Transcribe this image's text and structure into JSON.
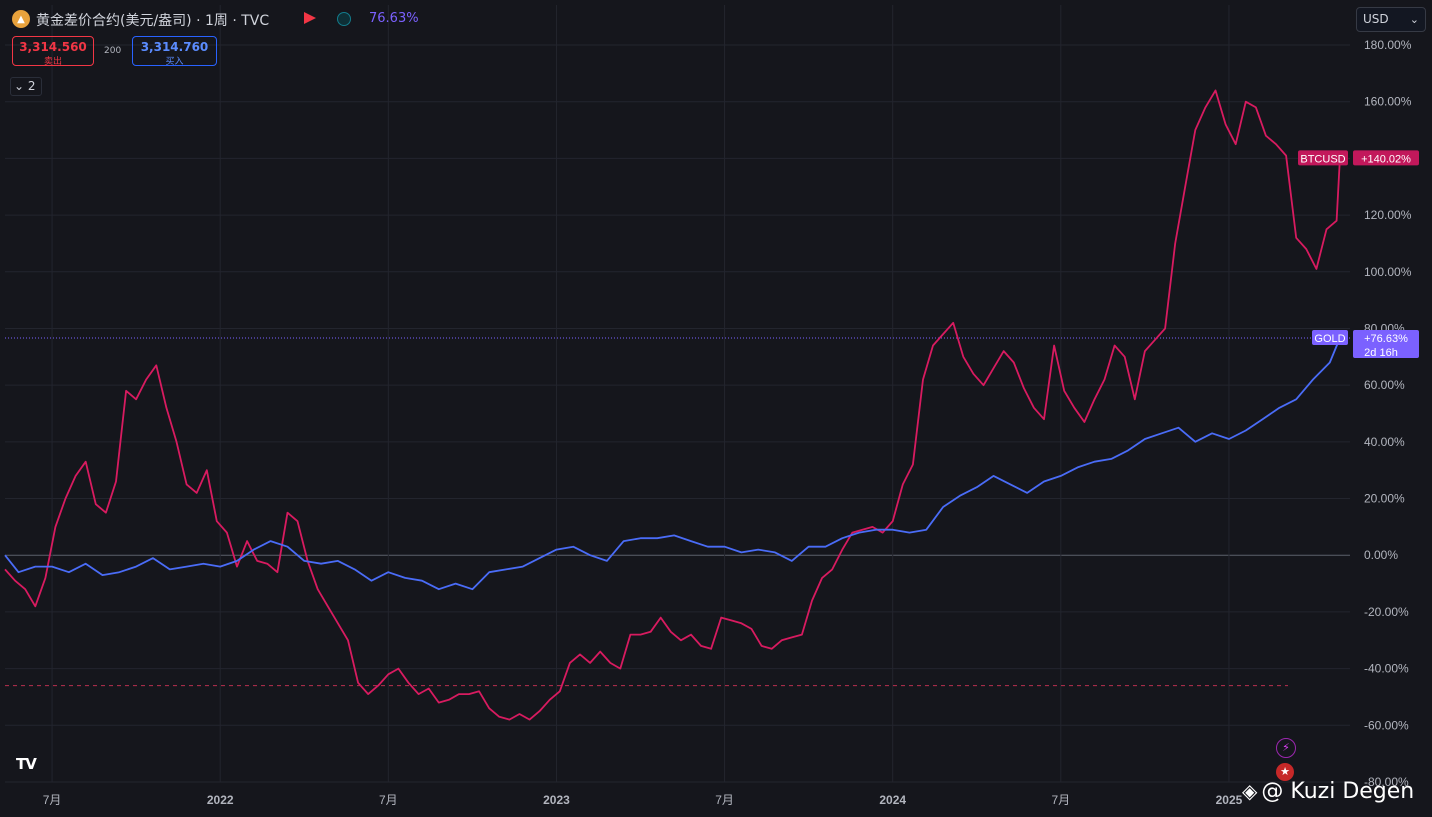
{
  "header": {
    "title": "黄金差价合约(美元/盎司) · 1周 · TVC",
    "change": "76.63%",
    "sell_price": "3,314.560",
    "sell_label": "卖出",
    "spread": "200",
    "buy_price": "3,314.760",
    "buy_label": "买入",
    "indicators_count": "2",
    "currency": "USD"
  },
  "watermark": "Kuzi Degen",
  "colors": {
    "gold": "#4a6cf7",
    "btc": "#d81b60",
    "background": "#15161c",
    "grid": "#23252e",
    "gold_tag": "#7b61ff"
  },
  "chart_data": {
    "type": "line",
    "y_unit": "%",
    "ylim": [
      -80,
      180
    ],
    "yticks": [
      "180.00%",
      "160.00%",
      "140.00%",
      "120.00%",
      "100.00%",
      "80.00%",
      "60.00%",
      "40.00%",
      "20.00%",
      "0.00%",
      "-20.00%",
      "-40.00%",
      "-60.00%",
      "-80.00%"
    ],
    "xlim": [
      2021.36,
      2025.36
    ],
    "xticks": [
      {
        "label": "7月",
        "x": 2021.5
      },
      {
        "label": "2022",
        "x": 2022.0
      },
      {
        "label": "7月",
        "x": 2022.5
      },
      {
        "label": "2023",
        "x": 2023.0
      },
      {
        "label": "7月",
        "x": 2023.5
      },
      {
        "label": "2024",
        "x": 2024.0
      },
      {
        "label": "7月",
        "x": 2024.5
      },
      {
        "label": "2025",
        "x": 2025.0
      }
    ],
    "grid": true,
    "legend": "none",
    "series": [
      {
        "name": "GOLD",
        "last_label": "+76.63%",
        "countdown": "2d 16h",
        "points": [
          [
            2021.36,
            0
          ],
          [
            2021.4,
            -6
          ],
          [
            2021.45,
            -4
          ],
          [
            2021.5,
            -4
          ],
          [
            2021.55,
            -6
          ],
          [
            2021.6,
            -3
          ],
          [
            2021.65,
            -7
          ],
          [
            2021.7,
            -6
          ],
          [
            2021.75,
            -4
          ],
          [
            2021.8,
            -1
          ],
          [
            2021.85,
            -5
          ],
          [
            2021.9,
            -4
          ],
          [
            2021.95,
            -3
          ],
          [
            2022.0,
            -4
          ],
          [
            2022.05,
            -2
          ],
          [
            2022.1,
            2
          ],
          [
            2022.15,
            5
          ],
          [
            2022.2,
            3
          ],
          [
            2022.25,
            -2
          ],
          [
            2022.3,
            -3
          ],
          [
            2022.35,
            -2
          ],
          [
            2022.4,
            -5
          ],
          [
            2022.45,
            -9
          ],
          [
            2022.5,
            -6
          ],
          [
            2022.55,
            -8
          ],
          [
            2022.6,
            -9
          ],
          [
            2022.65,
            -12
          ],
          [
            2022.7,
            -10
          ],
          [
            2022.75,
            -12
          ],
          [
            2022.8,
            -6
          ],
          [
            2022.85,
            -5
          ],
          [
            2022.9,
            -4
          ],
          [
            2022.95,
            -1
          ],
          [
            2023.0,
            2
          ],
          [
            2023.05,
            3
          ],
          [
            2023.1,
            0
          ],
          [
            2023.15,
            -2
          ],
          [
            2023.2,
            5
          ],
          [
            2023.25,
            6
          ],
          [
            2023.3,
            6
          ],
          [
            2023.35,
            7
          ],
          [
            2023.4,
            5
          ],
          [
            2023.45,
            3
          ],
          [
            2023.5,
            3
          ],
          [
            2023.55,
            1
          ],
          [
            2023.6,
            2
          ],
          [
            2023.65,
            1
          ],
          [
            2023.7,
            -2
          ],
          [
            2023.75,
            3
          ],
          [
            2023.8,
            3
          ],
          [
            2023.85,
            6
          ],
          [
            2023.9,
            8
          ],
          [
            2023.95,
            9
          ],
          [
            2024.0,
            9
          ],
          [
            2024.05,
            8
          ],
          [
            2024.1,
            9
          ],
          [
            2024.15,
            17
          ],
          [
            2024.2,
            21
          ],
          [
            2024.25,
            24
          ],
          [
            2024.3,
            28
          ],
          [
            2024.35,
            25
          ],
          [
            2024.4,
            22
          ],
          [
            2024.45,
            26
          ],
          [
            2024.5,
            28
          ],
          [
            2024.55,
            31
          ],
          [
            2024.6,
            33
          ],
          [
            2024.65,
            34
          ],
          [
            2024.7,
            37
          ],
          [
            2024.75,
            41
          ],
          [
            2024.8,
            43
          ],
          [
            2024.85,
            45
          ],
          [
            2024.9,
            40
          ],
          [
            2024.95,
            43
          ],
          [
            2025.0,
            41
          ],
          [
            2025.05,
            44
          ],
          [
            2025.1,
            48
          ],
          [
            2025.15,
            52
          ],
          [
            2025.2,
            55
          ],
          [
            2025.25,
            62
          ],
          [
            2025.3,
            68
          ],
          [
            2025.33,
            76.63
          ]
        ]
      },
      {
        "name": "BTCUSD",
        "last_label": "+140.02%",
        "points": [
          [
            2021.36,
            -5
          ],
          [
            2021.39,
            -9
          ],
          [
            2021.42,
            -12
          ],
          [
            2021.45,
            -18
          ],
          [
            2021.48,
            -8
          ],
          [
            2021.51,
            10
          ],
          [
            2021.54,
            20
          ],
          [
            2021.57,
            28
          ],
          [
            2021.6,
            33
          ],
          [
            2021.63,
            18
          ],
          [
            2021.66,
            15
          ],
          [
            2021.69,
            26
          ],
          [
            2021.72,
            58
          ],
          [
            2021.75,
            55
          ],
          [
            2021.78,
            62
          ],
          [
            2021.81,
            67
          ],
          [
            2021.84,
            52
          ],
          [
            2021.87,
            40
          ],
          [
            2021.9,
            25
          ],
          [
            2021.93,
            22
          ],
          [
            2021.96,
            30
          ],
          [
            2021.99,
            12
          ],
          [
            2022.02,
            8
          ],
          [
            2022.05,
            -4
          ],
          [
            2022.08,
            5
          ],
          [
            2022.11,
            -2
          ],
          [
            2022.14,
            -3
          ],
          [
            2022.17,
            -6
          ],
          [
            2022.2,
            15
          ],
          [
            2022.23,
            12
          ],
          [
            2022.26,
            -2
          ],
          [
            2022.29,
            -12
          ],
          [
            2022.32,
            -18
          ],
          [
            2022.35,
            -24
          ],
          [
            2022.38,
            -30
          ],
          [
            2022.41,
            -45
          ],
          [
            2022.44,
            -49
          ],
          [
            2022.47,
            -46
          ],
          [
            2022.5,
            -42
          ],
          [
            2022.53,
            -40
          ],
          [
            2022.56,
            -45
          ],
          [
            2022.59,
            -49
          ],
          [
            2022.62,
            -47
          ],
          [
            2022.65,
            -52
          ],
          [
            2022.68,
            -51
          ],
          [
            2022.71,
            -49
          ],
          [
            2022.74,
            -49
          ],
          [
            2022.77,
            -48
          ],
          [
            2022.8,
            -54
          ],
          [
            2022.83,
            -57
          ],
          [
            2022.86,
            -58
          ],
          [
            2022.89,
            -56
          ],
          [
            2022.92,
            -58
          ],
          [
            2022.95,
            -55
          ],
          [
            2022.98,
            -51
          ],
          [
            2023.01,
            -48
          ],
          [
            2023.04,
            -38
          ],
          [
            2023.07,
            -35
          ],
          [
            2023.1,
            -38
          ],
          [
            2023.13,
            -34
          ],
          [
            2023.16,
            -38
          ],
          [
            2023.19,
            -40
          ],
          [
            2023.22,
            -28
          ],
          [
            2023.25,
            -28
          ],
          [
            2023.28,
            -27
          ],
          [
            2023.31,
            -22
          ],
          [
            2023.34,
            -27
          ],
          [
            2023.37,
            -30
          ],
          [
            2023.4,
            -28
          ],
          [
            2023.43,
            -32
          ],
          [
            2023.46,
            -33
          ],
          [
            2023.49,
            -22
          ],
          [
            2023.52,
            -23
          ],
          [
            2023.55,
            -24
          ],
          [
            2023.58,
            -26
          ],
          [
            2023.61,
            -32
          ],
          [
            2023.64,
            -33
          ],
          [
            2023.67,
            -30
          ],
          [
            2023.7,
            -29
          ],
          [
            2023.73,
            -28
          ],
          [
            2023.76,
            -16
          ],
          [
            2023.79,
            -8
          ],
          [
            2023.82,
            -5
          ],
          [
            2023.85,
            2
          ],
          [
            2023.88,
            8
          ],
          [
            2023.91,
            9
          ],
          [
            2023.94,
            10
          ],
          [
            2023.97,
            8
          ],
          [
            2024.0,
            12
          ],
          [
            2024.03,
            25
          ],
          [
            2024.06,
            32
          ],
          [
            2024.09,
            62
          ],
          [
            2024.12,
            74
          ],
          [
            2024.15,
            78
          ],
          [
            2024.18,
            82
          ],
          [
            2024.21,
            70
          ],
          [
            2024.24,
            64
          ],
          [
            2024.27,
            60
          ],
          [
            2024.3,
            66
          ],
          [
            2024.33,
            72
          ],
          [
            2024.36,
            68
          ],
          [
            2024.39,
            59
          ],
          [
            2024.42,
            52
          ],
          [
            2024.45,
            48
          ],
          [
            2024.48,
            74
          ],
          [
            2024.51,
            58
          ],
          [
            2024.54,
            52
          ],
          [
            2024.57,
            47
          ],
          [
            2024.6,
            55
          ],
          [
            2024.63,
            62
          ],
          [
            2024.66,
            74
          ],
          [
            2024.69,
            70
          ],
          [
            2024.72,
            55
          ],
          [
            2024.75,
            72
          ],
          [
            2024.78,
            76
          ],
          [
            2024.81,
            80
          ],
          [
            2024.84,
            110
          ],
          [
            2024.87,
            130
          ],
          [
            2024.9,
            150
          ],
          [
            2024.93,
            158
          ],
          [
            2024.96,
            164
          ],
          [
            2024.99,
            152
          ],
          [
            2025.02,
            145
          ],
          [
            2025.05,
            160
          ],
          [
            2025.08,
            158
          ],
          [
            2025.11,
            148
          ],
          [
            2025.14,
            145
          ],
          [
            2025.17,
            141
          ],
          [
            2025.2,
            112
          ],
          [
            2025.23,
            108
          ],
          [
            2025.26,
            101
          ],
          [
            2025.29,
            115
          ],
          [
            2025.32,
            118
          ],
          [
            2025.33,
            140.02
          ]
        ]
      }
    ],
    "reference_line": -46
  }
}
